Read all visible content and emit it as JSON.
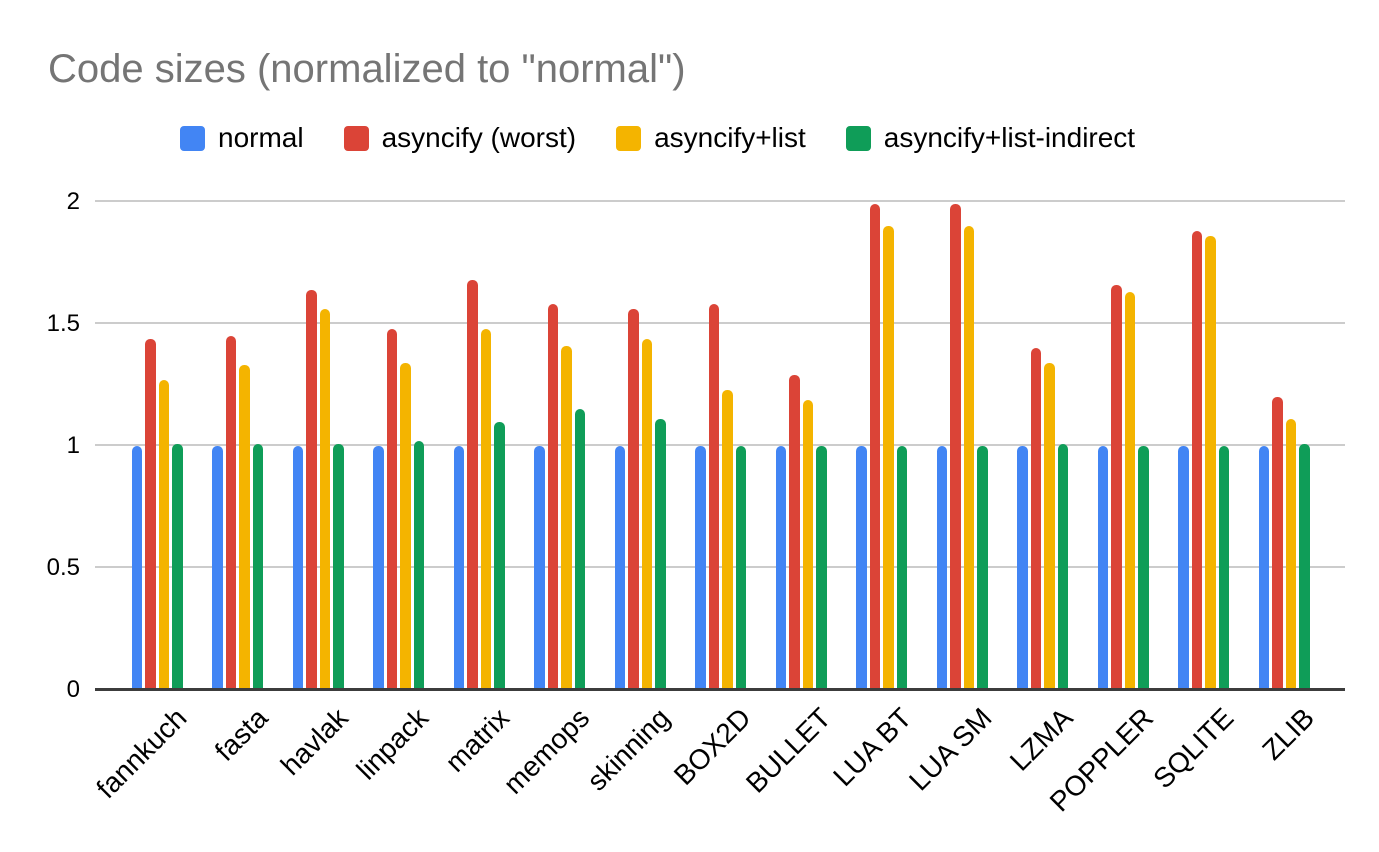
{
  "title": "Code sizes (normalized to \"normal\")",
  "colors": {
    "normal": "#4285F4",
    "asyncify_worst": "#DB4437",
    "asyncify_list": "#F4B400",
    "asyncify_list_indirect": "#0F9D58",
    "gridline": "#cccccc",
    "axis_line": "#3c3c3c",
    "title_text": "#757575",
    "label_text": "#000000",
    "background": "#ffffff"
  },
  "chart_data": {
    "type": "bar",
    "title": "Code sizes (normalized to \"normal\")",
    "xlabel": "",
    "ylabel": "",
    "grid": true,
    "legend_position": "top",
    "ylim": [
      0,
      2.05
    ],
    "yticks": [
      "0",
      "0.5",
      "1",
      "1.5",
      "2"
    ],
    "ytick_values": [
      0,
      0.5,
      1,
      1.5,
      2
    ],
    "categories": [
      "fannkuch",
      "fasta",
      "havlak",
      "linpack",
      "matrix",
      "memops",
      "skinning",
      "BOX2D",
      "BULLET",
      "LUA BT",
      "LUA SM",
      "LZMA",
      "POPPLER",
      "SQLITE",
      "ZLIB"
    ],
    "series": [
      {
        "name": "normal",
        "color": "#4285F4",
        "values": [
          1.0,
          1.0,
          1.0,
          1.0,
          1.0,
          1.0,
          1.0,
          1.0,
          1.0,
          1.0,
          1.0,
          1.0,
          1.0,
          1.0,
          1.0
        ]
      },
      {
        "name": "asyncify (worst)",
        "color": "#DB4437",
        "values": [
          1.44,
          1.45,
          1.64,
          1.48,
          1.68,
          1.58,
          1.56,
          1.58,
          1.29,
          1.99,
          1.99,
          1.4,
          1.66,
          1.88,
          1.2
        ]
      },
      {
        "name": "asyncify+list",
        "color": "#F4B400",
        "values": [
          1.27,
          1.33,
          1.56,
          1.34,
          1.48,
          1.41,
          1.44,
          1.23,
          1.19,
          1.9,
          1.9,
          1.34,
          1.63,
          1.86,
          1.11
        ]
      },
      {
        "name": "asyncify+list-indirect",
        "color": "#0F9D58",
        "values": [
          1.01,
          1.01,
          1.01,
          1.02,
          1.1,
          1.15,
          1.11,
          1.0,
          1.0,
          1.0,
          1.0,
          1.01,
          1.0,
          1.0,
          1.01
        ]
      }
    ]
  }
}
